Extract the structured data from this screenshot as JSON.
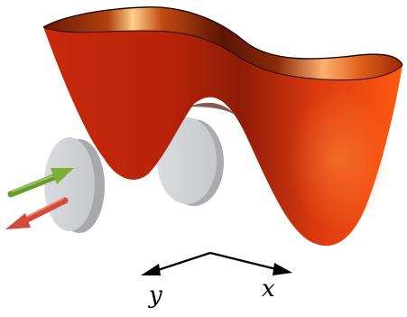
{
  "axes": {
    "y_label": "y",
    "x_label": "x"
  },
  "colors": {
    "surface_base": "#d8380f",
    "surface_highlight": "#ff7a1f",
    "surface_dark": "#7a1a06",
    "disc_fill": "#cfd1d4",
    "disc_edge": "#a7a9ad",
    "arrow_green": "#6a9b2a",
    "arrow_red": "#d44a3a"
  },
  "icons": [
    "double-well-potential-surface",
    "disc",
    "arrow"
  ]
}
